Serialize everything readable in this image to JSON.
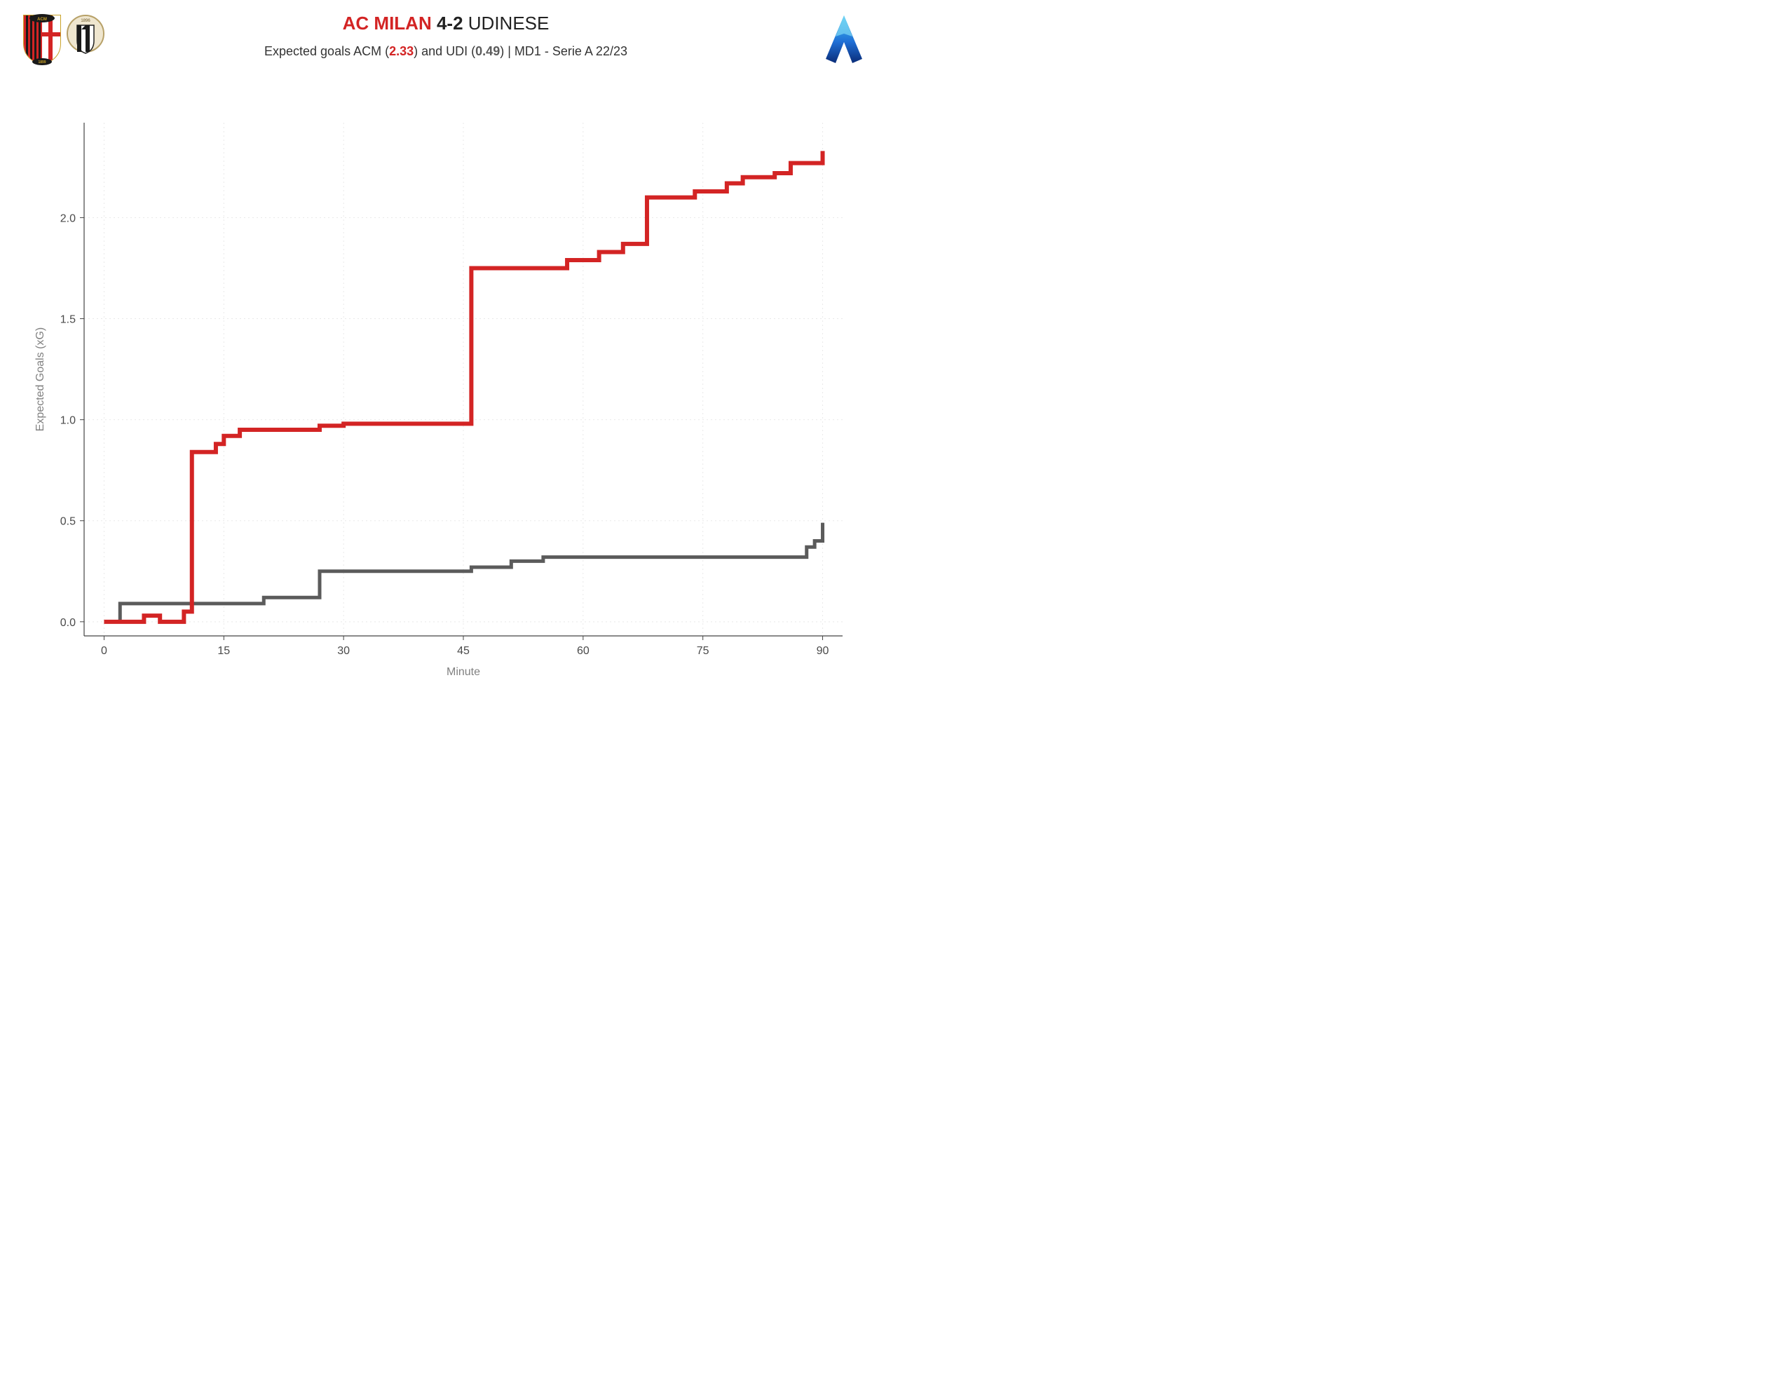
{
  "title": {
    "home_team": "AC MILAN",
    "score": "4-2",
    "away_team": "UDINESE",
    "title_fontsize": 26
  },
  "subtitle": {
    "prefix": "Expected goals ACM (",
    "xg_home": "2.33",
    "mid": ") and UDI (",
    "xg_away": "0.49",
    "suffix": ") | MD1 - Serie A 22/23",
    "subtitle_fontsize": 18
  },
  "colors": {
    "home": "#d32424",
    "away": "#5b5b5b",
    "grid": "#e9e9e9",
    "axis": "#9f9f9f",
    "tick_text": "#4a4a4a",
    "axis_label": "#808080",
    "spine": "#444444",
    "background": "#ffffff"
  },
  "chart": {
    "type": "step",
    "xlim": [
      0,
      90
    ],
    "ylim": [
      0.0,
      2.4
    ],
    "xticks": [
      0,
      15,
      30,
      45,
      60,
      75,
      90
    ],
    "yticks": [
      0.0,
      0.5,
      1.0,
      1.5,
      2.0
    ],
    "xlabel": "Minute",
    "ylabel": "Expected Goals (xG)",
    "line_width_home": 6,
    "line_width_away": 5,
    "grid_dash": "2,4",
    "label_fontsize": 16,
    "tick_fontsize": 16,
    "series_home": [
      [
        0,
        0.0
      ],
      [
        2,
        0.0
      ],
      [
        5,
        0.03
      ],
      [
        7,
        0.0
      ],
      [
        10,
        0.05
      ],
      [
        11,
        0.84
      ],
      [
        14,
        0.88
      ],
      [
        15,
        0.92
      ],
      [
        17,
        0.95
      ],
      [
        27,
        0.97
      ],
      [
        30,
        0.98
      ],
      [
        45,
        0.98
      ],
      [
        46,
        1.75
      ],
      [
        58,
        1.79
      ],
      [
        62,
        1.83
      ],
      [
        65,
        1.87
      ],
      [
        68,
        2.1
      ],
      [
        74,
        2.13
      ],
      [
        78,
        2.17
      ],
      [
        80,
        2.2
      ],
      [
        84,
        2.22
      ],
      [
        86,
        2.27
      ],
      [
        89,
        2.27
      ],
      [
        90,
        2.33
      ]
    ],
    "series_away": [
      [
        0,
        0.0
      ],
      [
        2,
        0.09
      ],
      [
        12,
        0.09
      ],
      [
        20,
        0.12
      ],
      [
        27,
        0.25
      ],
      [
        35,
        0.25
      ],
      [
        46,
        0.27
      ],
      [
        51,
        0.3
      ],
      [
        55,
        0.32
      ],
      [
        70,
        0.32
      ],
      [
        86,
        0.32
      ],
      [
        88,
        0.37
      ],
      [
        89,
        0.4
      ],
      [
        90,
        0.49
      ]
    ]
  },
  "logos": {
    "home_abbr": "ACM",
    "away_abbr": "UDI",
    "league_abbr": "A"
  }
}
